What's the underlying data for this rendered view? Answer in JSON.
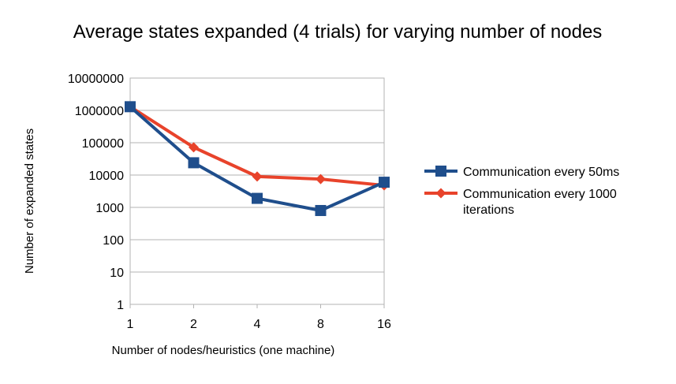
{
  "chart_data": {
    "type": "line",
    "title": "Average states expanded (4 trials) for varying number of nodes",
    "xlabel": "Number of nodes/heuristics (one machine)",
    "ylabel": "Number of expanded states",
    "categories": [
      "1",
      "2",
      "4",
      "8",
      "16"
    ],
    "y_scale": "log",
    "ylim": [
      1,
      10000000
    ],
    "y_ticks": [
      "1",
      "10",
      "100",
      "1000",
      "10000",
      "100000",
      "1000000",
      "10000000"
    ],
    "grid": "horizontal",
    "legend_position": "right",
    "series": [
      {
        "name": "Communication every 50ms",
        "color": "#1f4e8c",
        "marker": "square",
        "values": [
          1300000,
          24000,
          1900,
          800,
          6000
        ]
      },
      {
        "name": "Communication every 1000 iterations",
        "name_lines": [
          "Communication every 1000",
          "iterations"
        ],
        "color": "#e8432b",
        "marker": "diamond",
        "values": [
          1300000,
          72000,
          9000,
          7500,
          4800
        ]
      }
    ]
  }
}
